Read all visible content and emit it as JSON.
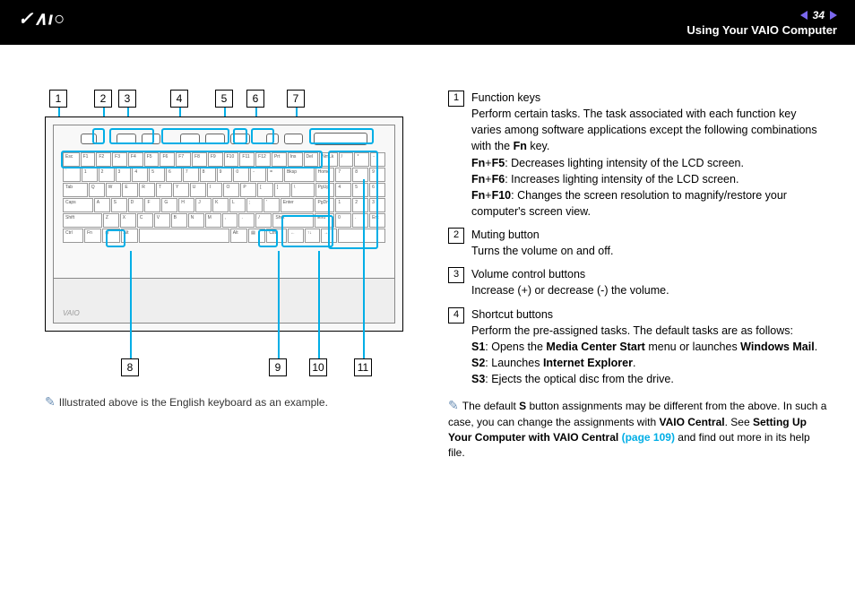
{
  "header": {
    "logo_text": "VAIO",
    "page_number": "34",
    "section_title": "Using Your VAIO Computer",
    "nav_arrow_color": "#7b68ee"
  },
  "diagram": {
    "callouts_top": [
      "1",
      "2",
      "3",
      "4",
      "5",
      "6",
      "7"
    ],
    "callouts_bottom": [
      "8",
      "9",
      "10",
      "11"
    ],
    "highlight_color": "#00aee6",
    "note_prefix": "✎",
    "note_text": "Illustrated above is the English keyboard as an example.",
    "palm_logo": "VAIO"
  },
  "items": [
    {
      "num": "1",
      "title": "Function keys",
      "body_html": "Perform certain tasks. The task associated with each function key varies among software applications except the following combinations with the <b>Fn</b> key.<br><b>Fn</b>+<b>F5</b>: Decreases lighting intensity of the LCD screen.<br><b>Fn</b>+<b>F6</b>: Increases lighting intensity of the LCD screen.<br><b>Fn</b>+<b>F10</b>: Changes the screen resolution to magnify/restore your computer's screen view."
    },
    {
      "num": "2",
      "title": "Muting button",
      "body_html": "Turns the volume on and off."
    },
    {
      "num": "3",
      "title": "Volume control buttons",
      "body_html": "Increase (+) or decrease (-) the volume."
    },
    {
      "num": "4",
      "title": "Shortcut buttons",
      "body_html": "Perform the pre-assigned tasks. The default tasks are as follows:<br><b>S1</b>: Opens the <b>Media Center Start</b> menu or launches <b>Windows Mail</b>.<br><b>S2</b>: Launches <b>Internet Explorer</b>.<br><b>S3</b>: Ejects the optical disc from the drive."
    }
  ],
  "right_note": {
    "prefix": "✎",
    "text_html": "The default <b>S</b> button assignments may be different from the above. In such a case, you can change the assignments with <b>VAIO Central</b>. See <b>Setting Up Your Computer with VAIO Central <span class='link'>(page 109)</span></b> and find out more in its help file."
  },
  "colors": {
    "highlight": "#00aee6",
    "link": "#00aee6",
    "note_icon": "#6b8fb5",
    "header_bg": "#000000",
    "header_fg": "#ffffff"
  }
}
